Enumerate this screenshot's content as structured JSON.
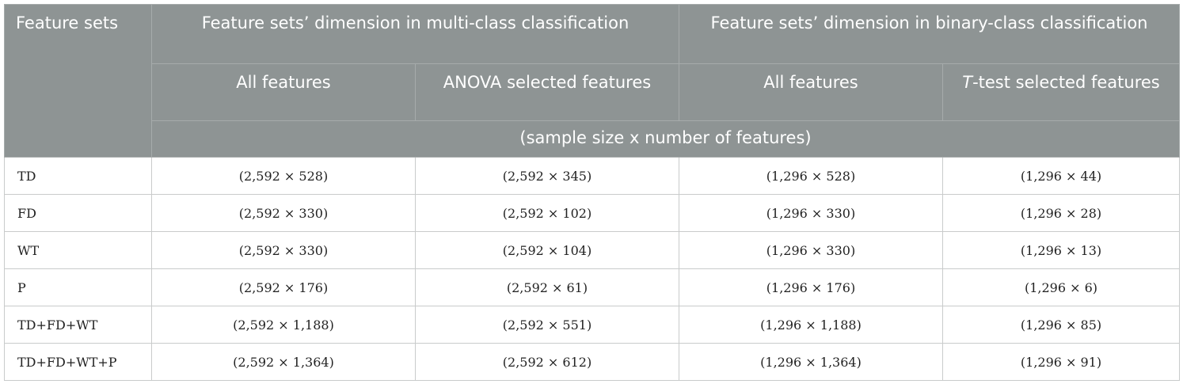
{
  "header": {
    "feature_sets": "Feature sets",
    "multi_group": "Feature sets’ dimension in multi-class classification",
    "binary_group": "Feature sets’ dimension in binary-class classification",
    "multi_all": "All features",
    "multi_selected": "ANOVA selected features",
    "binary_all": "All features",
    "binary_selected_prefix": "T",
    "binary_selected_rest": "-test selected features",
    "units": "(sample size x number of features)"
  },
  "rows": [
    {
      "label": "TD",
      "multi_all": "(2,592 × 528)",
      "multi_sel": "(2,592 × 345)",
      "bin_all": "(1,296 × 528)",
      "bin_sel": "(1,296 × 44)"
    },
    {
      "label": "FD",
      "multi_all": "(2,592 × 330)",
      "multi_sel": "(2,592 × 102)",
      "bin_all": "(1,296 × 330)",
      "bin_sel": "(1,296 × 28)"
    },
    {
      "label": "WT",
      "multi_all": "(2,592 × 330)",
      "multi_sel": "(2,592 × 104)",
      "bin_all": "(1,296 × 330)",
      "bin_sel": "(1,296 × 13)"
    },
    {
      "label": "P",
      "multi_all": "(2,592 × 176)",
      "multi_sel": "(2,592 × 61)",
      "bin_all": "(1,296 × 176)",
      "bin_sel": "(1,296 × 6)"
    },
    {
      "label": "TD+FD+WT",
      "multi_all": "(2,592 × 1,188)",
      "multi_sel": "(2,592 × 551)",
      "bin_all": "(1,296 × 1,188)",
      "bin_sel": "(1,296 × 85)"
    },
    {
      "label": "TD+FD+WT+P",
      "multi_all": "(2,592 × 1,364)",
      "multi_sel": "(2,592 × 612)",
      "bin_all": "(1,296 × 1,364)",
      "bin_sel": "(1,296 × 91)"
    }
  ]
}
